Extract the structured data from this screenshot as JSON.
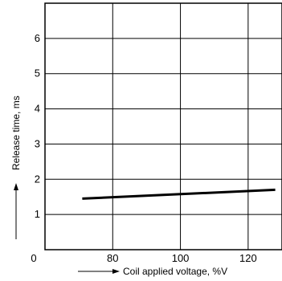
{
  "chart_data": {
    "type": "line",
    "title": "",
    "xlabel": "Coil applied voltage, %V",
    "ylabel": "Release time, ms",
    "xlim": [
      60,
      130
    ],
    "ylim": [
      0,
      7
    ],
    "x_ticks": [
      80,
      100,
      120
    ],
    "y_ticks": [
      1,
      2,
      3,
      4,
      5,
      6
    ],
    "origin_label": "0",
    "grid": true,
    "legend": "none",
    "line_color": "#000000",
    "series": [
      {
        "x": [
          71,
          128
        ],
        "y": [
          1.45,
          1.7
        ]
      }
    ]
  }
}
